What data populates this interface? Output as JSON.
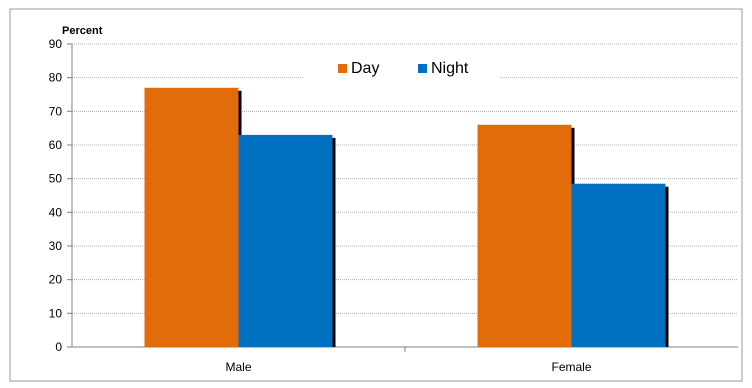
{
  "chart_data": {
    "type": "bar",
    "ylabel": "Percent",
    "categories": [
      "Male",
      "Female"
    ],
    "series": [
      {
        "name": "Day",
        "values": [
          77,
          66
        ]
      },
      {
        "name": "Night",
        "values": [
          63,
          48.5
        ]
      }
    ],
    "ylim": [
      0,
      90
    ],
    "yticks": [
      0,
      10,
      20,
      30,
      40,
      50,
      60,
      70,
      80,
      90
    ],
    "grid": true,
    "legend": "top-center",
    "colors": {
      "Day": "#e36c0a",
      "Night": "#0070c0",
      "shadow": "#000000",
      "grid": "#b0b0b0",
      "border": "#9a9a9a"
    }
  }
}
